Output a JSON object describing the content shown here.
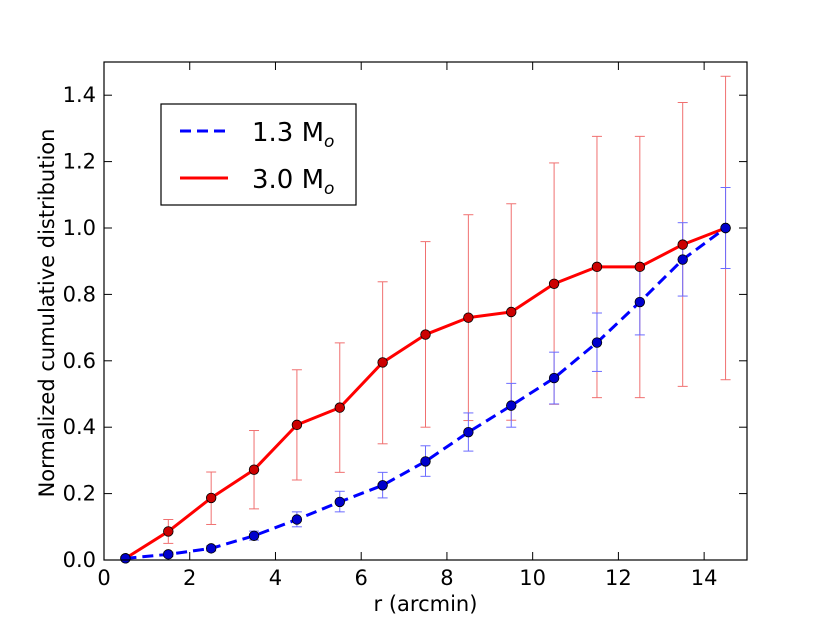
{
  "chart_data": {
    "type": "line",
    "xlabel": "r (arcmin)",
    "ylabel": "Normalized cumulative distribution",
    "xlim": [
      0,
      15
    ],
    "ylim": [
      0,
      1.5
    ],
    "xticks": [
      0,
      2,
      4,
      6,
      8,
      10,
      12,
      14
    ],
    "xtick_labels": [
      "0",
      "2",
      "4",
      "6",
      "8",
      "10",
      "12",
      "14"
    ],
    "yticks": [
      0.0,
      0.2,
      0.4,
      0.6,
      0.8,
      1.0,
      1.2,
      1.4
    ],
    "ytick_labels": [
      "0.0",
      "0.2",
      "0.4",
      "0.6",
      "0.8",
      "1.0",
      "1.2",
      "1.4"
    ],
    "legend_position": "upper-left",
    "series": [
      {
        "name": "1.3 M",
        "subscript": "o",
        "color": "#0000ff",
        "line_style": "dashed",
        "x": [
          0.5,
          1.5,
          2.5,
          3.5,
          4.5,
          5.5,
          6.5,
          7.5,
          8.5,
          9.5,
          10.5,
          11.5,
          12.5,
          13.5,
          14.5
        ],
        "y": [
          0.005,
          0.017,
          0.035,
          0.073,
          0.122,
          0.175,
          0.225,
          0.297,
          0.385,
          0.465,
          0.548,
          0.655,
          0.777,
          0.905,
          1.0
        ],
        "yerr_low": [
          0.0,
          0.011,
          0.027,
          0.06,
          0.1,
          0.145,
          0.187,
          0.252,
          0.328,
          0.4,
          0.47,
          0.568,
          0.678,
          0.795,
          0.878
        ],
        "yerr_high": [
          0.011,
          0.024,
          0.043,
          0.087,
          0.145,
          0.207,
          0.264,
          0.344,
          0.443,
          0.532,
          0.626,
          0.744,
          0.876,
          1.016,
          1.122
        ]
      },
      {
        "name": "3.0 M",
        "subscript": "o",
        "color": "#ff0000",
        "line_style": "solid",
        "x": [
          0.5,
          1.5,
          2.5,
          3.5,
          4.5,
          5.5,
          6.5,
          7.5,
          8.5,
          9.5,
          10.5,
          11.5,
          12.5,
          13.5,
          14.5
        ],
        "y": [
          0.005,
          0.086,
          0.187,
          0.272,
          0.407,
          0.459,
          0.595,
          0.679,
          0.73,
          0.747,
          0.832,
          0.883,
          0.883,
          0.95,
          1.0
        ],
        "yerr_low": [
          0.0,
          0.05,
          0.107,
          0.154,
          0.241,
          0.264,
          0.35,
          0.4,
          0.42,
          0.421,
          0.469,
          0.489,
          0.489,
          0.523,
          0.543
        ],
        "yerr_high": [
          0.01,
          0.122,
          0.265,
          0.39,
          0.573,
          0.654,
          0.838,
          0.959,
          1.04,
          1.073,
          1.196,
          1.276,
          1.276,
          1.378,
          1.457
        ]
      }
    ]
  }
}
